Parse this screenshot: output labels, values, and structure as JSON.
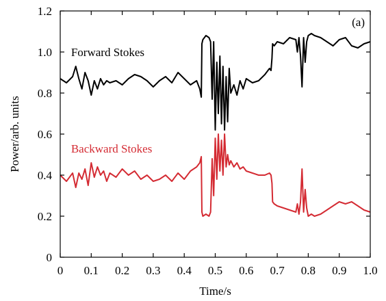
{
  "chart_data": {
    "type": "line",
    "panel_label": "(a)",
    "xlabel": "Time/s",
    "ylabel": "Power/arb. units",
    "xlim": [
      0,
      1.0
    ],
    "ylim": [
      0,
      1.2
    ],
    "xticks": [
      0,
      0.1,
      0.2,
      0.3,
      0.4,
      0.5,
      0.6,
      0.7,
      0.8,
      0.9,
      1.0
    ],
    "xtick_labels": [
      "0",
      "0.1",
      "0.2",
      "0.3",
      "0.4",
      "0.5",
      "0.6",
      "0.7",
      "0.8",
      "0.9",
      "1.0"
    ],
    "yticks": [
      0,
      0.2,
      0.4,
      0.6,
      0.8,
      1.0,
      1.2
    ],
    "ytick_labels": [
      "0",
      "0.2",
      "0.4",
      "0.6",
      "0.8",
      "1.0",
      "1.2"
    ],
    "grid": false,
    "series": [
      {
        "name": "Forward Stokes",
        "color": "#000000",
        "label_pos": [
          0.035,
          1.0
        ],
        "x": [
          0,
          0.02,
          0.04,
          0.05,
          0.06,
          0.07,
          0.08,
          0.09,
          0.1,
          0.11,
          0.12,
          0.13,
          0.14,
          0.15,
          0.16,
          0.18,
          0.2,
          0.22,
          0.24,
          0.26,
          0.28,
          0.3,
          0.32,
          0.34,
          0.36,
          0.38,
          0.4,
          0.42,
          0.44,
          0.45,
          0.455,
          0.457,
          0.46,
          0.47,
          0.48,
          0.485,
          0.49,
          0.495,
          0.5,
          0.505,
          0.51,
          0.515,
          0.52,
          0.525,
          0.53,
          0.535,
          0.54,
          0.545,
          0.55,
          0.56,
          0.57,
          0.58,
          0.59,
          0.6,
          0.62,
          0.64,
          0.66,
          0.675,
          0.68,
          0.683,
          0.685,
          0.69,
          0.7,
          0.72,
          0.74,
          0.76,
          0.765,
          0.77,
          0.775,
          0.78,
          0.785,
          0.79,
          0.795,
          0.8,
          0.81,
          0.82,
          0.84,
          0.86,
          0.88,
          0.9,
          0.92,
          0.94,
          0.96,
          0.98,
          1.0
        ],
        "y": [
          0.87,
          0.85,
          0.88,
          0.93,
          0.87,
          0.82,
          0.9,
          0.86,
          0.79,
          0.86,
          0.82,
          0.87,
          0.84,
          0.86,
          0.85,
          0.86,
          0.84,
          0.87,
          0.89,
          0.88,
          0.86,
          0.83,
          0.86,
          0.88,
          0.85,
          0.9,
          0.87,
          0.84,
          0.86,
          0.82,
          0.78,
          1.04,
          1.06,
          1.08,
          1.07,
          1.05,
          0.77,
          1.05,
          0.62,
          0.95,
          0.7,
          0.98,
          0.65,
          0.93,
          0.62,
          0.88,
          0.66,
          0.92,
          0.8,
          0.84,
          0.79,
          0.86,
          0.82,
          0.87,
          0.85,
          0.86,
          0.89,
          0.92,
          0.91,
          0.97,
          1.04,
          1.03,
          1.05,
          1.04,
          1.07,
          1.06,
          1.0,
          1.07,
          0.98,
          0.83,
          1.07,
          0.95,
          1.05,
          1.08,
          1.09,
          1.08,
          1.07,
          1.05,
          1.03,
          1.06,
          1.07,
          1.03,
          1.02,
          1.04,
          1.05
        ]
      },
      {
        "name": "Backward Stokes",
        "color": "#d42b33",
        "label_pos": [
          0.035,
          0.53
        ],
        "x": [
          0,
          0.02,
          0.04,
          0.05,
          0.06,
          0.07,
          0.08,
          0.09,
          0.1,
          0.11,
          0.12,
          0.13,
          0.14,
          0.15,
          0.16,
          0.18,
          0.2,
          0.22,
          0.24,
          0.26,
          0.28,
          0.3,
          0.32,
          0.34,
          0.36,
          0.38,
          0.4,
          0.42,
          0.44,
          0.45,
          0.455,
          0.457,
          0.46,
          0.47,
          0.48,
          0.485,
          0.49,
          0.495,
          0.5,
          0.505,
          0.51,
          0.515,
          0.52,
          0.525,
          0.53,
          0.535,
          0.54,
          0.545,
          0.55,
          0.56,
          0.57,
          0.58,
          0.59,
          0.6,
          0.62,
          0.64,
          0.66,
          0.675,
          0.68,
          0.683,
          0.685,
          0.69,
          0.7,
          0.72,
          0.74,
          0.76,
          0.765,
          0.77,
          0.775,
          0.78,
          0.785,
          0.79,
          0.795,
          0.8,
          0.81,
          0.82,
          0.84,
          0.86,
          0.88,
          0.9,
          0.92,
          0.94,
          0.96,
          0.98,
          1.0
        ],
        "y": [
          0.4,
          0.37,
          0.41,
          0.34,
          0.41,
          0.38,
          0.43,
          0.35,
          0.46,
          0.39,
          0.44,
          0.4,
          0.42,
          0.37,
          0.41,
          0.39,
          0.43,
          0.4,
          0.42,
          0.38,
          0.4,
          0.37,
          0.38,
          0.4,
          0.37,
          0.41,
          0.38,
          0.42,
          0.44,
          0.46,
          0.49,
          0.22,
          0.2,
          0.21,
          0.2,
          0.22,
          0.48,
          0.3,
          0.58,
          0.38,
          0.6,
          0.42,
          0.57,
          0.4,
          0.6,
          0.44,
          0.5,
          0.45,
          0.47,
          0.44,
          0.46,
          0.43,
          0.44,
          0.42,
          0.41,
          0.4,
          0.4,
          0.41,
          0.4,
          0.36,
          0.27,
          0.26,
          0.25,
          0.24,
          0.23,
          0.22,
          0.26,
          0.21,
          0.27,
          0.43,
          0.22,
          0.33,
          0.24,
          0.2,
          0.21,
          0.2,
          0.21,
          0.23,
          0.25,
          0.27,
          0.26,
          0.27,
          0.25,
          0.23,
          0.22
        ]
      }
    ]
  }
}
